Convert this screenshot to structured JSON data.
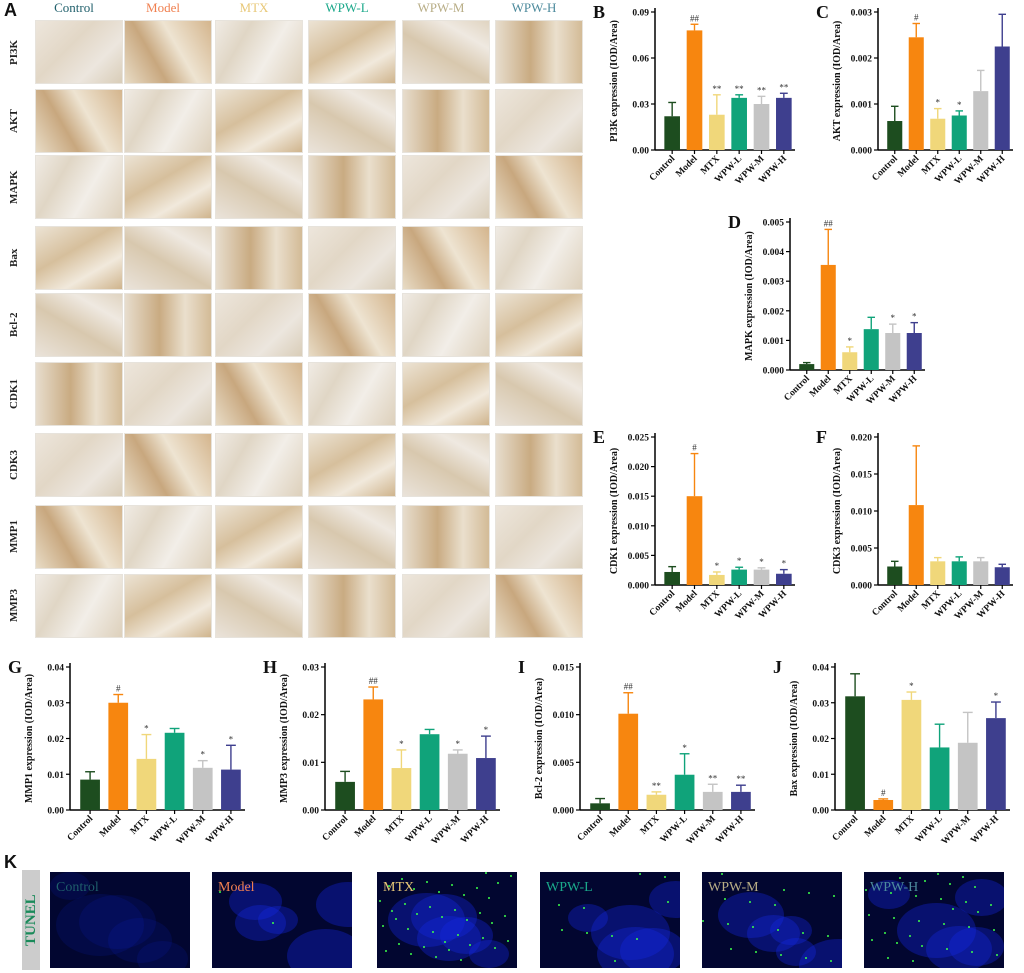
{
  "panel_letters": {
    "a": "A",
    "k": "K"
  },
  "groups": [
    "Control",
    "Model",
    "MTX",
    "WPW-L",
    "WPW-M",
    "WPW-H"
  ],
  "group_colors": [
    "#1f5f6b",
    "#f08050",
    "#e8c878",
    "#1aa88a",
    "#b8ad86",
    "#4c8a9c"
  ],
  "bar_colors": [
    "#1d4d1f",
    "#f7860f",
    "#f0d77a",
    "#10a37a",
    "#c4c4c4",
    "#3e3f8e"
  ],
  "ihc_rows": [
    "PI3K",
    "AKT",
    "MAPK",
    "Bax",
    "Bcl-2",
    "CDK1",
    "CDK3",
    "MMP1",
    "MMP3"
  ],
  "tunel_label": "TUNEL",
  "chart_data": [
    {
      "letter": "B",
      "type": "bar",
      "ylabel": "PI3K expression (IOD/Area)",
      "ylim": [
        0,
        0.09
      ],
      "ticks": [
        "0.00",
        "0.03",
        "0.06",
        "0.09"
      ],
      "categories": [
        "Control",
        "Model",
        "MTX",
        "WPW-L",
        "WPW-M",
        "WPW-H"
      ],
      "values": [
        0.022,
        0.078,
        0.023,
        0.034,
        0.03,
        0.034
      ],
      "errors": [
        0.009,
        0.004,
        0.013,
        0.002,
        0.005,
        0.003
      ],
      "annotations": [
        "",
        "##",
        "**",
        "**",
        "**",
        "**"
      ]
    },
    {
      "letter": "C",
      "type": "bar",
      "ylabel": "AKT expression (IOD/Area)",
      "ylim": [
        0,
        0.003
      ],
      "ticks": [
        "0.000",
        "0.001",
        "0.002",
        "0.003"
      ],
      "categories": [
        "Control",
        "Model",
        "MTX",
        "WPW-L",
        "WPW-M",
        "WPW-H"
      ],
      "values": [
        0.00063,
        0.00245,
        0.00068,
        0.00075,
        0.00128,
        0.00225
      ],
      "errors": [
        0.00032,
        0.0003,
        0.00022,
        0.0001,
        0.00045,
        0.0007
      ],
      "annotations": [
        "",
        "#",
        "*",
        "*",
        "",
        ""
      ]
    },
    {
      "letter": "D",
      "type": "bar",
      "ylabel": "MAPK expression (IOD/Area)",
      "ylim": [
        0,
        0.005
      ],
      "ticks": [
        "0.000",
        "0.001",
        "0.002",
        "0.003",
        "0.004",
        "0.005"
      ],
      "categories": [
        "Control",
        "Model",
        "MTX",
        "WPW-L",
        "WPW-M",
        "WPW-H"
      ],
      "values": [
        0.0002,
        0.00355,
        0.0006,
        0.00138,
        0.00125,
        0.00125
      ],
      "errors": [
        5e-05,
        0.0012,
        0.00018,
        0.0004,
        0.0003,
        0.00035
      ],
      "annotations": [
        "",
        "##",
        "*",
        "",
        "*",
        "*"
      ]
    },
    {
      "letter": "E",
      "type": "bar",
      "ylabel": "CDK1 expression (IOD/Area)",
      "ylim": [
        0,
        0.025
      ],
      "ticks": [
        "0.000",
        "0.005",
        "0.010",
        "0.015",
        "0.020",
        "0.025"
      ],
      "categories": [
        "Control",
        "Model",
        "MTX",
        "WPW-L",
        "WPW-M",
        "WPW-H"
      ],
      "values": [
        0.0022,
        0.015,
        0.0017,
        0.0026,
        0.0026,
        0.0019
      ],
      "errors": [
        0.0009,
        0.0072,
        0.0005,
        0.0004,
        0.0003,
        0.0007
      ],
      "annotations": [
        "",
        "#",
        "*",
        "*",
        "*",
        "*"
      ]
    },
    {
      "letter": "F",
      "type": "bar",
      "ylabel": "CDK3 expression (IOD/Area)",
      "ylim": [
        0,
        0.02
      ],
      "ticks": [
        "0.000",
        "0.005",
        "0.010",
        "0.015",
        "0.020"
      ],
      "categories": [
        "Control",
        "Model",
        "MTX",
        "WPW-L",
        "WPW-M",
        "WPW-H"
      ],
      "values": [
        0.0025,
        0.0108,
        0.0032,
        0.0032,
        0.0032,
        0.0024
      ],
      "errors": [
        0.0007,
        0.008,
        0.0005,
        0.0006,
        0.0005,
        0.0004
      ],
      "annotations": [
        "",
        "",
        "",
        "",
        "",
        ""
      ]
    },
    {
      "letter": "G",
      "type": "bar",
      "ylabel": "MMP1 expression (IOD/Area)",
      "ylim": [
        0,
        0.04
      ],
      "ticks": [
        "0.00",
        "0.01",
        "0.02",
        "0.03",
        "0.04"
      ],
      "categories": [
        "Control",
        "Model",
        "MTX",
        "WPW-L",
        "WPW-M",
        "WPW-H"
      ],
      "values": [
        0.0085,
        0.03,
        0.0143,
        0.0216,
        0.0118,
        0.0113
      ],
      "errors": [
        0.0022,
        0.0023,
        0.0068,
        0.0012,
        0.002,
        0.0068
      ],
      "annotations": [
        "",
        "#",
        "*",
        "",
        "*",
        "*"
      ]
    },
    {
      "letter": "H",
      "type": "bar",
      "ylabel": "MMP3 expression (IOD/Area)",
      "ylim": [
        0,
        0.03
      ],
      "ticks": [
        "0.00",
        "0.01",
        "0.02",
        "0.03"
      ],
      "categories": [
        "Control",
        "Model",
        "MTX",
        "WPW-L",
        "WPW-M",
        "WPW-H"
      ],
      "values": [
        0.0059,
        0.0232,
        0.0088,
        0.0159,
        0.0118,
        0.0109
      ],
      "errors": [
        0.0022,
        0.0026,
        0.0038,
        0.001,
        0.0008,
        0.0046
      ],
      "annotations": [
        "",
        "##",
        "*",
        "",
        "*",
        "*"
      ]
    },
    {
      "letter": "I",
      "type": "bar",
      "ylabel": "Bcl-2 expression (IOD/Area)",
      "ylim": [
        0,
        0.015
      ],
      "ticks": [
        "0.000",
        "0.005",
        "0.010",
        "0.015"
      ],
      "categories": [
        "Control",
        "Model",
        "MTX",
        "WPW-L",
        "WPW-M",
        "WPW-H"
      ],
      "values": [
        0.0007,
        0.0101,
        0.0016,
        0.0037,
        0.0019,
        0.0019
      ],
      "errors": [
        0.0005,
        0.0022,
        0.0003,
        0.0022,
        0.0008,
        0.0007
      ],
      "annotations": [
        "",
        "##",
        "**",
        "*",
        "**",
        "**"
      ]
    },
    {
      "letter": "J",
      "type": "bar",
      "ylabel": "Bax expression (IOD/Area)",
      "ylim": [
        0,
        0.04
      ],
      "ticks": [
        "0.00",
        "0.01",
        "0.02",
        "0.03",
        "0.04"
      ],
      "categories": [
        "Control",
        "Model",
        "MTX",
        "WPW-L",
        "WPW-M",
        "WPW-H"
      ],
      "values": [
        0.0318,
        0.0028,
        0.0308,
        0.0175,
        0.0188,
        0.0257
      ],
      "errors": [
        0.0063,
        0.0003,
        0.0022,
        0.0065,
        0.0085,
        0.0045
      ],
      "annotations": [
        "",
        "#",
        "*",
        "",
        "",
        "*"
      ]
    }
  ]
}
